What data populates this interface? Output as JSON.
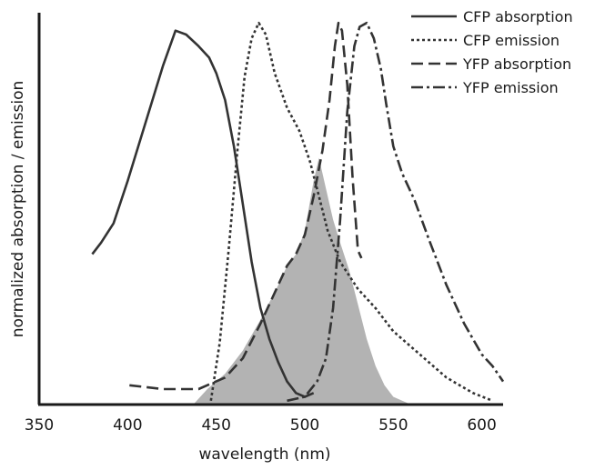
{
  "chart_data": {
    "type": "line",
    "title": "",
    "xlabel": "wavelength (nm)",
    "ylabel": "normalized absorption / emission",
    "xlim": [
      350,
      612
    ],
    "ylim": [
      0,
      1.0
    ],
    "x_ticks": [
      350,
      400,
      450,
      500,
      550,
      600
    ],
    "x_tick_labels": [
      "350",
      "400",
      "450",
      "500",
      "550",
      "600"
    ],
    "y_ticks_shown": false,
    "grid": false,
    "legend_position": "top-right",
    "series": [
      {
        "name": "CFP absorption",
        "style": "solid",
        "x": [
          380,
          385,
          392,
          400,
          410,
          420,
          427,
          433,
          440,
          446,
          450,
          455,
          460,
          465,
          470,
          475,
          480,
          485,
          490,
          495,
          500,
          505
        ],
        "y": [
          0.39,
          0.42,
          0.47,
          0.58,
          0.73,
          0.88,
          0.97,
          0.96,
          0.93,
          0.9,
          0.86,
          0.79,
          0.67,
          0.52,
          0.37,
          0.25,
          0.17,
          0.11,
          0.06,
          0.03,
          0.02,
          0.03
        ]
      },
      {
        "name": "CFP emission",
        "style": "dotted",
        "x": [
          447,
          452,
          457,
          462,
          466,
          470,
          474,
          478,
          483,
          490,
          497,
          503,
          508,
          513,
          520,
          530,
          540,
          550,
          565,
          580,
          595,
          606
        ],
        "y": [
          0.01,
          0.16,
          0.4,
          0.66,
          0.85,
          0.95,
          0.99,
          0.96,
          0.86,
          0.77,
          0.71,
          0.63,
          0.54,
          0.45,
          0.37,
          0.3,
          0.25,
          0.19,
          0.13,
          0.07,
          0.03,
          0.01
        ]
      },
      {
        "name": "YFP absorption",
        "style": "dashed",
        "x": [
          401,
          420,
          440,
          455,
          465,
          475,
          485,
          490,
          495,
          500,
          505,
          510,
          514,
          517,
          519,
          521,
          524,
          527,
          530,
          532
        ],
        "y": [
          0.05,
          0.04,
          0.04,
          0.07,
          0.12,
          0.21,
          0.31,
          0.36,
          0.39,
          0.44,
          0.54,
          0.66,
          0.79,
          0.93,
          0.99,
          0.97,
          0.83,
          0.59,
          0.4,
          0.38
        ]
      },
      {
        "name": "YFP emission",
        "style": "dashdot",
        "x": [
          490,
          500,
          507,
          512,
          516,
          520,
          524,
          528,
          531,
          535,
          539,
          543,
          546,
          550,
          555,
          562,
          570,
          580,
          590,
          600,
          606,
          612
        ],
        "y": [
          0.01,
          0.02,
          0.06,
          0.12,
          0.25,
          0.48,
          0.76,
          0.93,
          0.98,
          0.99,
          0.95,
          0.87,
          0.78,
          0.67,
          0.6,
          0.53,
          0.43,
          0.31,
          0.21,
          0.13,
          0.1,
          0.06
        ]
      }
    ],
    "shaded_overlap": {
      "description": "",
      "x": [
        437,
        445,
        455,
        465,
        475,
        485,
        490,
        495,
        500,
        505,
        508,
        512,
        516,
        520,
        525,
        530,
        535,
        540,
        545,
        550,
        555,
        560
      ],
      "y": [
        0.0,
        0.04,
        0.08,
        0.14,
        0.22,
        0.31,
        0.36,
        0.39,
        0.45,
        0.58,
        0.64,
        0.56,
        0.48,
        0.42,
        0.35,
        0.26,
        0.17,
        0.1,
        0.05,
        0.02,
        0.01,
        0.0
      ]
    },
    "colors": {
      "lines": "#333333",
      "shade": "#b3b3b3",
      "axes": "#1a1a1a"
    }
  }
}
